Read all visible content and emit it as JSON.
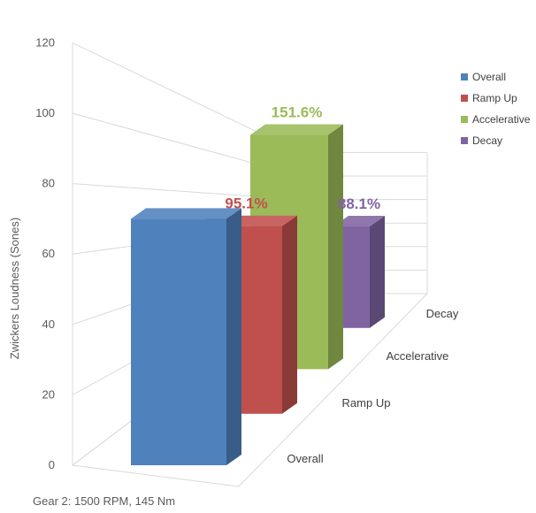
{
  "chart_data": {
    "type": "bar",
    "ylabel": "Zwickers Loudness (Sones)",
    "xlabel": "Gear 2: 1500 RPM, 145 Nm",
    "ylim": [
      0,
      120
    ],
    "yticks": [
      0,
      20,
      40,
      60,
      80,
      100,
      120
    ],
    "categories": [
      "Overall",
      "Ramp Up",
      "Accelerative",
      "Decay"
    ],
    "series": [
      {
        "name": "Overall",
        "value": 70,
        "color": "#4f81bd",
        "label": ""
      },
      {
        "name": "Ramp Up",
        "value": 66.6,
        "color": "#c0504d",
        "label": "95.1%"
      },
      {
        "name": "Accelerative",
        "value": 106.1,
        "color": "#9bbb59",
        "label": "151.6%"
      },
      {
        "name": "Decay",
        "value": 61.7,
        "color": "#8064a2",
        "label": "88.1%"
      }
    ],
    "legend_position": "right",
    "grid": true
  }
}
